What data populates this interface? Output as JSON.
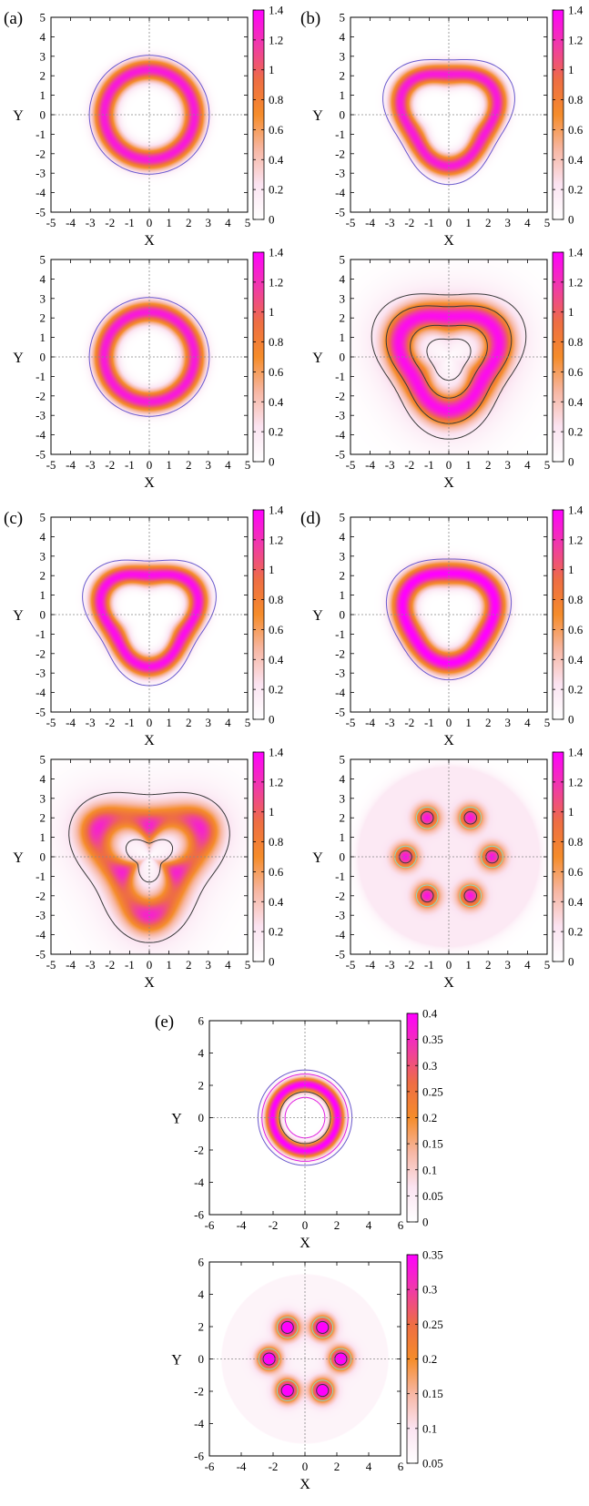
{
  "colors": {
    "colormap": [
      "#ffffff",
      "#fbe3f1",
      "#f7b7a4",
      "#f58c2a",
      "#ee6d44",
      "#f03aa8",
      "#ff00ff"
    ],
    "contour_outer": "#6a5acd",
    "contour_dark": "#3a3a3a",
    "contour_light": "#8fd3c8",
    "contour_pale": "#f4e79a",
    "gridline": "#888888"
  },
  "panel_labels": [
    "(a)",
    "(b)",
    "(c)",
    "(d)",
    "(e)"
  ],
  "chart_data": [
    {
      "id": "a1",
      "panel_label": "(a)",
      "type": "heatmap",
      "xlabel": "X",
      "ylabel": "Y",
      "xlim": [
        -5,
        5
      ],
      "ylim": [
        -5,
        5
      ],
      "xticks": [
        "-5",
        "-4",
        "-3",
        "-2",
        "-1",
        "0",
        "1",
        "2",
        "3",
        "4",
        "5"
      ],
      "yticks": [
        "-5",
        "-4",
        "-3",
        "-2",
        "-1",
        "0",
        "1",
        "2",
        "3",
        "4",
        "5"
      ],
      "colorbar_ticks": [
        "0",
        "0.2",
        "0.4",
        "0.6",
        "0.8",
        "1",
        "1.2",
        "1.4"
      ],
      "colorbar_range": [
        0,
        1.4
      ],
      "density": {
        "shape": "ring",
        "radius": 2.3,
        "width": 0.55,
        "peak": 1.3,
        "triangularity": 0.0
      },
      "contours": [
        {
          "radius": 3.05,
          "color": "outer"
        }
      ]
    },
    {
      "id": "b1",
      "panel_label": "(b)",
      "type": "heatmap",
      "xlabel": "X",
      "ylabel": "Y",
      "xlim": [
        -5,
        5
      ],
      "ylim": [
        -5,
        5
      ],
      "xticks": [
        "-5",
        "-4",
        "-3",
        "-2",
        "-1",
        "0",
        "1",
        "2",
        "3",
        "4",
        "5"
      ],
      "yticks": [
        "-5",
        "-4",
        "-3",
        "-2",
        "-1",
        "0",
        "1",
        "2",
        "3",
        "4",
        "5"
      ],
      "colorbar_ticks": [
        "0",
        "0.2",
        "0.4",
        "0.6",
        "0.8",
        "1",
        "1.2",
        "1.4"
      ],
      "colorbar_range": [
        0,
        1.4
      ],
      "density": {
        "shape": "ring",
        "radius": 2.35,
        "width": 0.55,
        "peak": 1.3,
        "triangularity": 0.12
      },
      "contours": [
        {
          "radius": 3.2,
          "color": "outer"
        }
      ]
    },
    {
      "id": "a2",
      "panel_label": "",
      "type": "heatmap",
      "xlabel": "X",
      "ylabel": "Y",
      "xlim": [
        -5,
        5
      ],
      "ylim": [
        -5,
        5
      ],
      "xticks": [
        "-5",
        "-4",
        "-3",
        "-2",
        "-1",
        "0",
        "1",
        "2",
        "3",
        "4",
        "5"
      ],
      "yticks": [
        "-5",
        "-4",
        "-3",
        "-2",
        "-1",
        "0",
        "1",
        "2",
        "3",
        "4",
        "5"
      ],
      "colorbar_ticks": [
        "0",
        "0.2",
        "0.4",
        "0.6",
        "0.8",
        "1",
        "1.2",
        "1.4"
      ],
      "colorbar_range": [
        0,
        1.4
      ],
      "density": {
        "shape": "ring",
        "radius": 2.3,
        "width": 0.55,
        "peak": 1.3,
        "triangularity": 0.0
      },
      "contours": [
        {
          "radius": 3.05,
          "color": "outer"
        }
      ]
    },
    {
      "id": "b2",
      "panel_label": "",
      "type": "heatmap",
      "xlabel": "X",
      "ylabel": "Y",
      "xlim": [
        -5,
        5
      ],
      "ylim": [
        -5,
        5
      ],
      "xticks": [
        "-5",
        "-4",
        "-3",
        "-2",
        "-1",
        "0",
        "1",
        "2",
        "3",
        "4",
        "5"
      ],
      "yticks": [
        "-5",
        "-4",
        "-3",
        "-2",
        "-1",
        "0",
        "1",
        "2",
        "3",
        "4",
        "5"
      ],
      "colorbar_ticks": [
        "0",
        "0.2",
        "0.4",
        "0.6",
        "0.8",
        "1",
        "1.2",
        "1.4"
      ],
      "colorbar_range": [
        0,
        1.4
      ],
      "density": {
        "shape": "ring",
        "radius": 2.4,
        "width": 0.75,
        "peak": 1.1,
        "triangularity": 0.14,
        "halo": 0.25
      },
      "contours": [
        {
          "radius": 3.7,
          "color": "dark"
        },
        {
          "radius": 3.0,
          "color": "dark"
        },
        {
          "radius": 1.85,
          "color": "dark"
        },
        {
          "radius": 1.05,
          "color": "dark"
        }
      ]
    },
    {
      "id": "c1",
      "panel_label": "(c)",
      "type": "heatmap",
      "xlabel": "X",
      "ylabel": "Y",
      "xlim": [
        -5,
        5
      ],
      "ylim": [
        -5,
        5
      ],
      "xticks": [
        "-5",
        "-4",
        "-3",
        "-2",
        "-1",
        "0",
        "1",
        "2",
        "3",
        "4",
        "5"
      ],
      "yticks": [
        "-5",
        "-4",
        "-3",
        "-2",
        "-1",
        "0",
        "1",
        "2",
        "3",
        "4",
        "5"
      ],
      "colorbar_ticks": [
        "0",
        "0.2",
        "0.4",
        "0.6",
        "0.8",
        "1",
        "1.2",
        "1.4"
      ],
      "colorbar_range": [
        0,
        1.4
      ],
      "density": {
        "shape": "ring",
        "radius": 2.35,
        "width": 0.55,
        "peak": 1.35,
        "triangularity": 0.14
      },
      "contours": [
        {
          "radius": 3.2,
          "color": "outer"
        }
      ]
    },
    {
      "id": "d1",
      "panel_label": "(d)",
      "type": "heatmap",
      "xlabel": "X",
      "ylabel": "Y",
      "xlim": [
        -5,
        5
      ],
      "ylim": [
        -5,
        5
      ],
      "xticks": [
        "-5",
        "-4",
        "-3",
        "-2",
        "-1",
        "0",
        "1",
        "2",
        "3",
        "4",
        "5"
      ],
      "yticks": [
        "-5",
        "-4",
        "-3",
        "-2",
        "-1",
        "0",
        "1",
        "2",
        "3",
        "4",
        "5"
      ],
      "colorbar_ticks": [
        "0",
        "0.2",
        "0.4",
        "0.6",
        "0.8",
        "1",
        "1.2",
        "1.4"
      ],
      "colorbar_range": [
        0,
        1.4
      ],
      "density": {
        "shape": "ring",
        "radius": 2.3,
        "width": 0.6,
        "peak": 1.4,
        "triangularity": 0.08
      },
      "contours": [
        {
          "radius": 3.1,
          "color": "outer"
        }
      ]
    },
    {
      "id": "c2",
      "panel_label": "",
      "type": "heatmap",
      "xlabel": "X",
      "ylabel": "Y",
      "xlim": [
        -5,
        5
      ],
      "ylim": [
        -5,
        5
      ],
      "xticks": [
        "-5",
        "-4",
        "-3",
        "-2",
        "-1",
        "0",
        "1",
        "2",
        "3",
        "4",
        "5"
      ],
      "yticks": [
        "-5",
        "-4",
        "-3",
        "-2",
        "-1",
        "0",
        "1",
        "2",
        "3",
        "4",
        "5"
      ],
      "colorbar_ticks": [
        "0",
        "0.2",
        "0.4",
        "0.6",
        "0.8",
        "1",
        "1.2",
        "1.4"
      ],
      "colorbar_range": [
        0,
        1.4
      ],
      "density": {
        "shape": "trefoil",
        "radius": 2.3,
        "width": 0.9,
        "peak": 0.95,
        "triangularity": 0.3,
        "halo": 0.22
      },
      "contours": [
        {
          "radius": 3.8,
          "color": "dark",
          "tri": 0.16
        },
        {
          "radius": 1.0,
          "color": "dark",
          "tri": 0.3
        }
      ]
    },
    {
      "id": "d2",
      "panel_label": "",
      "type": "heatmap",
      "xlabel": "X",
      "ylabel": "Y",
      "xlim": [
        -5,
        5
      ],
      "ylim": [
        -5,
        5
      ],
      "xticks": [
        "-5",
        "-4",
        "-3",
        "-2",
        "-1",
        "0",
        "1",
        "2",
        "3",
        "4",
        "5"
      ],
      "yticks": [
        "-5",
        "-4",
        "-3",
        "-2",
        "-1",
        "0",
        "1",
        "2",
        "3",
        "4",
        "5"
      ],
      "colorbar_ticks": [
        "0",
        "0.2",
        "0.4",
        "0.6",
        "0.8",
        "1",
        "1.2",
        "1.4"
      ],
      "colorbar_range": [
        0,
        1.4
      ],
      "density": {
        "shape": "spots",
        "peak": 1.15,
        "spot_sigma": 0.42,
        "spots": [
          [
            -1.1,
            2.0
          ],
          [
            1.1,
            2.0
          ],
          [
            -2.2,
            0.0
          ],
          [
            2.2,
            0.0
          ],
          [
            -1.1,
            -2.0
          ],
          [
            1.1,
            -2.0
          ]
        ],
        "background": 0.18,
        "background_radius": 4.6
      },
      "contours": []
    },
    {
      "id": "e1",
      "panel_label": "(e)",
      "type": "heatmap",
      "xlabel": "X",
      "ylabel": "Y",
      "xlim": [
        -6,
        6
      ],
      "ylim": [
        -6,
        6
      ],
      "xticks": [
        "-6",
        "-4",
        "-2",
        "0",
        "2",
        "4",
        "6"
      ],
      "yticks": [
        "-6",
        "-4",
        "-2",
        "0",
        "2",
        "4",
        "6"
      ],
      "colorbar_ticks": [
        "0",
        "0.05",
        "0.1",
        "0.15",
        "0.2",
        "0.25",
        "0.3",
        "0.35",
        "0.4"
      ],
      "colorbar_range": [
        0,
        0.4
      ],
      "density": {
        "shape": "ring",
        "radius": 2.05,
        "width": 0.45,
        "peak": 0.4,
        "triangularity": 0.0
      },
      "contours": [
        {
          "radius": 2.95,
          "color": "outer"
        },
        {
          "radius": 2.7,
          "color": "pink"
        },
        {
          "radius": 1.6,
          "color": "dark"
        },
        {
          "radius": 1.25,
          "color": "pink"
        }
      ]
    },
    {
      "id": "e2",
      "panel_label": "",
      "type": "heatmap",
      "xlabel": "X",
      "ylabel": "Y",
      "xlim": [
        -6,
        6
      ],
      "ylim": [
        -6,
        6
      ],
      "xticks": [
        "-6",
        "-4",
        "-2",
        "0",
        "2",
        "4",
        "6"
      ],
      "yticks": [
        "-6",
        "-4",
        "-2",
        "0",
        "2",
        "4",
        "6"
      ],
      "colorbar_ticks": [
        "0.05",
        "0.1",
        "0.15",
        "0.2",
        "0.25",
        "0.3",
        "0.35"
      ],
      "colorbar_range": [
        0.05,
        0.35
      ],
      "density": {
        "shape": "spots",
        "peak": 0.33,
        "spot_sigma": 0.5,
        "spots": [
          [
            -1.1,
            1.95
          ],
          [
            1.1,
            1.95
          ],
          [
            -2.25,
            0.0
          ],
          [
            2.25,
            0.0
          ],
          [
            -1.1,
            -1.95
          ],
          [
            1.1,
            -1.95
          ]
        ],
        "background": 0.07,
        "background_radius": 5.2
      },
      "contours": []
    }
  ]
}
